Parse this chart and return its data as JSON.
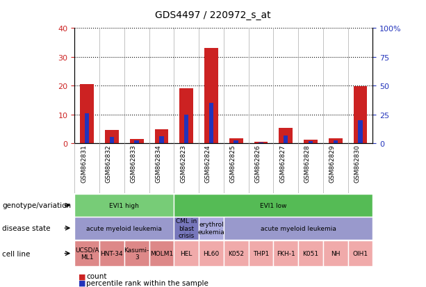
{
  "title": "GDS4497 / 220972_s_at",
  "samples": [
    "GSM862831",
    "GSM862832",
    "GSM862833",
    "GSM862834",
    "GSM862823",
    "GSM862824",
    "GSM862825",
    "GSM862826",
    "GSM862827",
    "GSM862828",
    "GSM862829",
    "GSM862830"
  ],
  "count_values": [
    20.5,
    4.5,
    1.5,
    4.8,
    19.0,
    33.0,
    1.8,
    0.5,
    5.2,
    1.2,
    1.8,
    19.8
  ],
  "percentile_values": [
    26.0,
    5.5,
    2.5,
    6.0,
    25.0,
    35.0,
    2.5,
    0.8,
    6.5,
    2.0,
    2.5,
    20.0
  ],
  "left_ylim": [
    0,
    40
  ],
  "right_ylim": [
    0,
    100
  ],
  "left_yticks": [
    0,
    10,
    20,
    30,
    40
  ],
  "right_yticks": [
    0,
    25,
    50,
    75,
    100
  ],
  "right_yticklabels": [
    "0",
    "25",
    "50",
    "75",
    "100%"
  ],
  "bar_color_red": "#cc2222",
  "bar_color_blue": "#2233bb",
  "genotype_groups": [
    {
      "label": "EVI1 high",
      "start": 0,
      "end": 4,
      "color": "#77cc77"
    },
    {
      "label": "EVI1 low",
      "start": 4,
      "end": 12,
      "color": "#55bb55"
    }
  ],
  "disease_groups": [
    {
      "label": "acute myeloid leukemia",
      "start": 0,
      "end": 4,
      "color": "#9999cc"
    },
    {
      "label": "CML in\nblast\ncrisis",
      "start": 4,
      "end": 5,
      "color": "#7777bb"
    },
    {
      "label": "erythrol\neukemia",
      "start": 5,
      "end": 6,
      "color": "#aaaadd"
    },
    {
      "label": "acute myeloid leukemia",
      "start": 6,
      "end": 12,
      "color": "#9999cc"
    }
  ],
  "cell_lines": [
    {
      "label": "UCSD/A\nML1",
      "start": 0,
      "end": 1,
      "color": "#dd8888"
    },
    {
      "label": "HNT-34",
      "start": 1,
      "end": 2,
      "color": "#dd8888"
    },
    {
      "label": "Kasumi-\n3",
      "start": 2,
      "end": 3,
      "color": "#dd8888"
    },
    {
      "label": "MOLM1",
      "start": 3,
      "end": 4,
      "color": "#dd8888"
    },
    {
      "label": "HEL",
      "start": 4,
      "end": 5,
      "color": "#f0aaaa"
    },
    {
      "label": "HL60",
      "start": 5,
      "end": 6,
      "color": "#f0aaaa"
    },
    {
      "label": "K052",
      "start": 6,
      "end": 7,
      "color": "#f0aaaa"
    },
    {
      "label": "THP1",
      "start": 7,
      "end": 8,
      "color": "#f0aaaa"
    },
    {
      "label": "FKH-1",
      "start": 8,
      "end": 9,
      "color": "#f0aaaa"
    },
    {
      "label": "K051",
      "start": 9,
      "end": 10,
      "color": "#f0aaaa"
    },
    {
      "label": "NH",
      "start": 10,
      "end": 11,
      "color": "#f0aaaa"
    },
    {
      "label": "OIH1",
      "start": 11,
      "end": 12,
      "color": "#f0aaaa"
    }
  ],
  "row_labels": [
    "genotype/variation",
    "disease state",
    "cell line"
  ],
  "legend_count_label": "count",
  "legend_percentile_label": "percentile rank within the sample",
  "tick_color_left": "#cc2222",
  "tick_color_right": "#2233bb"
}
